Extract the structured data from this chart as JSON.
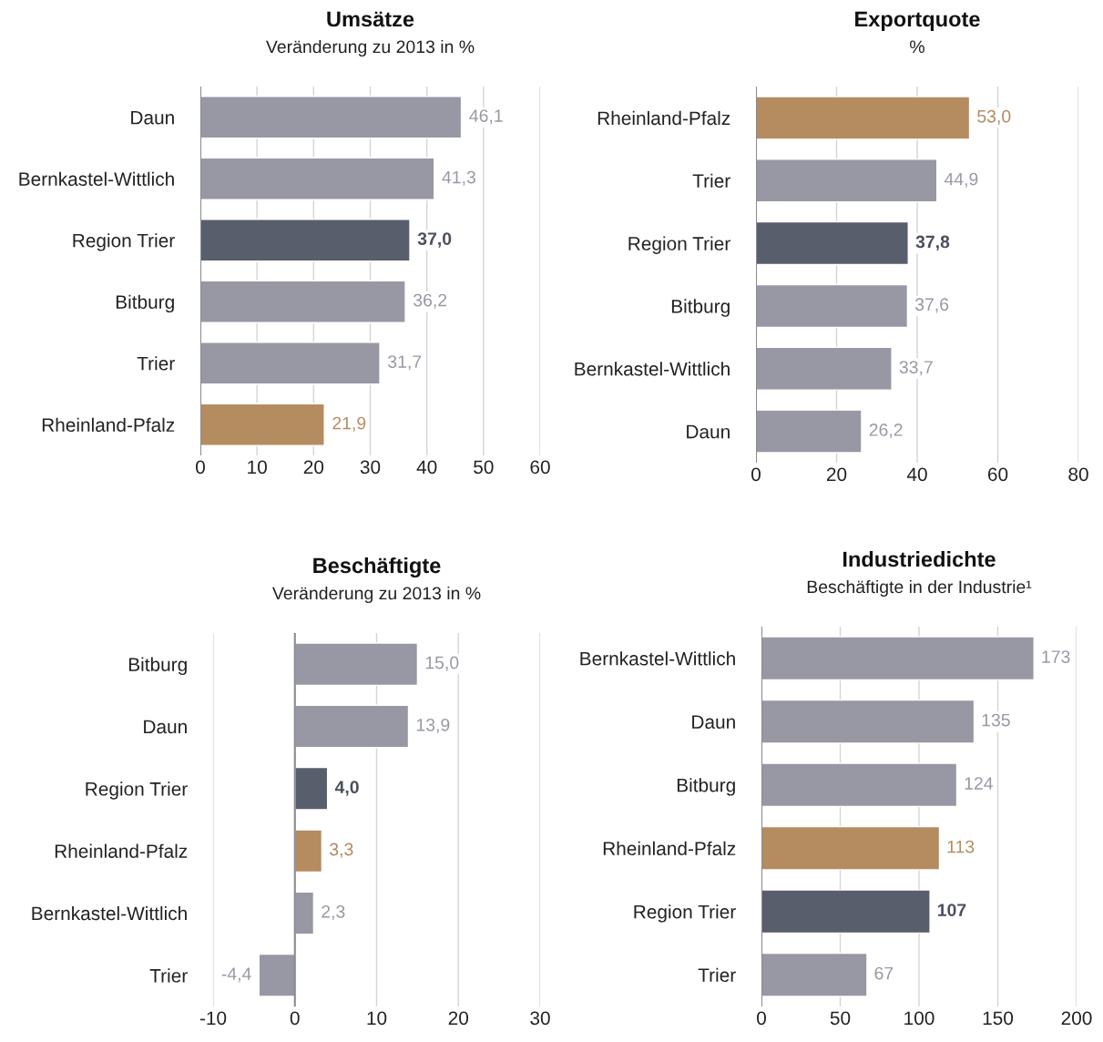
{
  "chart_data": [
    {
      "type": "bar",
      "orientation": "horizontal",
      "title": "Umsätze",
      "subtitle": "Veränderung zu 2013 in %",
      "categories": [
        "Daun",
        "Bernkastel-Wittlich",
        "Region Trier",
        "Bitburg",
        "Trier",
        "Rheinland-Pfalz"
      ],
      "values": [
        46.1,
        41.3,
        37.0,
        36.2,
        31.7,
        21.9
      ],
      "value_labels": [
        "46,1",
        "41,3",
        "37,0",
        "36,2",
        "31,7",
        "21,9"
      ],
      "colors": [
        "#9898a4",
        "#9898a4",
        "#585e6b",
        "#9898a4",
        "#9898a4",
        "#b58c60"
      ],
      "xlim": [
        0,
        60
      ],
      "xticks": [
        0,
        10,
        20,
        30,
        40,
        50,
        60
      ],
      "grid": "x"
    },
    {
      "type": "bar",
      "orientation": "horizontal",
      "title": "Exportquote",
      "subtitle": "%",
      "categories": [
        "Rheinland-Pfalz",
        "Trier",
        "Region Trier",
        "Bitburg",
        "Bernkastel-Wittlich",
        "Daun"
      ],
      "values": [
        53.0,
        44.9,
        37.8,
        37.6,
        33.7,
        26.2
      ],
      "value_labels": [
        "53,0",
        "44,9",
        "37,8",
        "37,6",
        "33,7",
        "26,2"
      ],
      "colors": [
        "#b58c60",
        "#9898a4",
        "#585e6b",
        "#9898a4",
        "#9898a4",
        "#9898a4"
      ],
      "xlim": [
        0,
        80
      ],
      "xticks": [
        0,
        20,
        40,
        60,
        80
      ],
      "grid": "x"
    },
    {
      "type": "bar",
      "orientation": "horizontal",
      "title": "Beschäftigte",
      "subtitle": "Veränderung zu 2013 in %",
      "categories": [
        "Bitburg",
        "Daun",
        "Region Trier",
        "Rheinland-Pfalz",
        "Bernkastel-Wittlich",
        "Trier"
      ],
      "values": [
        15.0,
        13.9,
        4.0,
        3.3,
        2.3,
        -4.4
      ],
      "value_labels": [
        "15,0",
        "13,9",
        "4,0",
        "3,3",
        "2,3",
        "-4,4"
      ],
      "colors": [
        "#9898a4",
        "#9898a4",
        "#585e6b",
        "#b58c60",
        "#9898a4",
        "#9898a4"
      ],
      "xlim": [
        -10,
        30
      ],
      "xticks": [
        -10,
        0,
        10,
        20,
        30
      ],
      "grid": "x"
    },
    {
      "type": "bar",
      "orientation": "horizontal",
      "title": "Industriedichte",
      "subtitle": "Beschäftigte in der Industrie¹",
      "categories": [
        "Bernkastel-Wittlich",
        "Daun",
        "Bitburg",
        "Rheinland-Pfalz",
        "Region Trier",
        "Trier"
      ],
      "values": [
        173,
        135,
        124,
        113,
        107,
        67
      ],
      "value_labels": [
        "173",
        "135",
        "124",
        "113",
        "107",
        "67"
      ],
      "colors": [
        "#9898a4",
        "#9898a4",
        "#9898a4",
        "#b58c60",
        "#585e6b",
        "#9898a4"
      ],
      "xlim": [
        0,
        200
      ],
      "xticks": [
        0,
        50,
        100,
        150,
        200
      ],
      "grid": "x"
    }
  ]
}
